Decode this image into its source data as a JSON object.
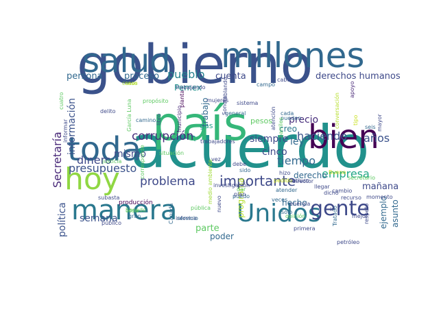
{
  "words": [
    {
      "t": "gobierno",
      "c": "#3b528b"
    },
    {
      "t": "acuerdo",
      "c": "#21918c"
    },
    {
      "t": "país",
      "c": "#35b779"
    },
    {
      "t": "millones",
      "c": "#31688e"
    },
    {
      "t": "salud",
      "c": "#31688e"
    },
    {
      "t": "toda",
      "c": "#31688e"
    },
    {
      "t": "bien",
      "c": "#440154"
    },
    {
      "t": "manera",
      "c": "#2a788e"
    },
    {
      "t": "hoy",
      "c": "#90d743"
    },
    {
      "t": "Unidos",
      "c": "#2a788e"
    },
    {
      "t": "gente",
      "c": "#3e4989"
    },
    {
      "t": "importante",
      "c": "#3e4989"
    },
    {
      "t": "problema",
      "c": "#3e4989"
    },
    {
      "t": "corrupción",
      "c": "#472d7b"
    },
    {
      "t": "presupuesto",
      "c": "#3b528b"
    },
    {
      "t": "Secretaría",
      "c": "#482878"
    },
    {
      "t": "dinero",
      "c": "#3e4989"
    },
    {
      "t": "mismo",
      "c": "#3e4989"
    },
    {
      "t": "haciendo",
      "c": "#3b528b"
    },
    {
      "t": "años",
      "c": "#3b528b"
    },
    {
      "t": "tiempo",
      "c": "#31688e"
    },
    {
      "t": "empresa",
      "c": "#21a685"
    },
    {
      "t": "pueblo",
      "c": "#26828e"
    },
    {
      "t": "derechos humanos",
      "c": "#3e4989"
    },
    {
      "t": "cuenta",
      "c": "#3e4989"
    },
    {
      "t": "persona",
      "c": "#31688e"
    },
    {
      "t": "proceso",
      "c": "#31688e"
    },
    {
      "t": "información",
      "c": "#3b528b"
    },
    {
      "t": "política",
      "c": "#3b528b"
    },
    {
      "t": "semana",
      "c": "#3b528b"
    },
    {
      "t": "parte",
      "c": "#5ec962"
    },
    {
      "t": "poder",
      "c": "#31688e"
    },
    {
      "t": "ley",
      "c": "#31688e"
    },
    {
      "t": "cinco",
      "c": "#3e4989"
    },
    {
      "t": "siempre",
      "c": "#3e4989"
    },
    {
      "t": "derecho",
      "c": "#31688e"
    },
    {
      "t": "mañana",
      "c": "#3e4989"
    },
    {
      "t": "ejemplo",
      "c": "#31688e"
    },
    {
      "t": "asunto",
      "c": "#31688e"
    },
    {
      "t": "hecho",
      "c": "#31688e"
    },
    {
      "t": "creo",
      "c": "#2a788e"
    },
    {
      "t": "precio",
      "c": "#472d7b"
    },
    {
      "t": "pesos",
      "c": "#5ec962"
    },
    {
      "t": "Pemex",
      "c": "#21918c"
    },
    {
      "t": "gas",
      "c": "#1f9e89"
    },
    {
      "t": "trabajo",
      "c": "#31688e"
    },
    {
      "t": "programa",
      "c": "#b5de2b"
    },
    {
      "t": "producción",
      "c": "#440154"
    },
    {
      "t": "gran",
      "c": "#31688e"
    },
    {
      "t": "caso",
      "c": "#c8e020"
    },
    {
      "t": "casos",
      "c": "#a0da39"
    },
    {
      "t": "trabajando",
      "c": "#3e4989"
    },
    {
      "t": "campo",
      "c": "#31688e"
    },
    {
      "t": "cabo",
      "c": "#3e4989"
    },
    {
      "t": "apoyo",
      "c": "#482878"
    },
    {
      "t": "cuatro",
      "c": "#5ec962"
    },
    {
      "t": "planta",
      "c": "#440154"
    },
    {
      "t": "propósito",
      "c": "#5ec962"
    },
    {
      "t": "hablando",
      "c": "#3e4989"
    },
    {
      "t": "mujeres",
      "c": "#3e4989"
    },
    {
      "t": "sistema",
      "c": "#3e4989"
    },
    {
      "t": "delito",
      "c": "#3e4989"
    },
    {
      "t": "camino",
      "c": "#31688e"
    },
    {
      "t": "libro",
      "c": "#3e4989"
    },
    {
      "t": "municipio",
      "c": "#482878"
    },
    {
      "t": "general",
      "c": "#31688e"
    },
    {
      "t": "Sonora",
      "c": "#3e4989"
    },
    {
      "t": "cada",
      "c": "#31688e"
    },
    {
      "t": "pueden",
      "c": "#31688e"
    },
    {
      "t": "barriles",
      "c": "#5ec962"
    },
    {
      "t": "atención",
      "c": "#3e4989"
    },
    {
      "t": "conversación",
      "c": "#b5de2b"
    },
    {
      "t": "tipo",
      "c": "#c8e020"
    },
    {
      "t": "seis",
      "c": "#31688e"
    },
    {
      "t": "mayor",
      "c": "#3e4989"
    },
    {
      "t": "informar",
      "c": "#3e4989"
    },
    {
      "t": "García Luna",
      "c": "#5ec962"
    },
    {
      "t": "trabajadores",
      "c": "#3e4989"
    },
    {
      "t": "situación",
      "c": "#5ec962"
    },
    {
      "t": "justicia",
      "c": "#5ec962"
    },
    {
      "t": "vez",
      "c": "#3e4989"
    },
    {
      "t": "debe",
      "c": "#3e4989"
    },
    {
      "t": "puedo",
      "c": "#31688e"
    },
    {
      "t": "dar",
      "c": "#5ec962"
    },
    {
      "t": "sido",
      "c": "#31688e"
    },
    {
      "t": "hizo",
      "c": "#3e4989"
    },
    {
      "t": "pedido",
      "c": "#c8e020"
    },
    {
      "t": "incluso",
      "c": "#3e4989"
    },
    {
      "t": "director",
      "c": "#3e4989"
    },
    {
      "t": "llegar",
      "c": "#3e4989"
    },
    {
      "t": "dicho",
      "c": "#3e4989"
    },
    {
      "t": "Bueno",
      "c": "#c8e020"
    },
    {
      "t": "atender",
      "c": "#31688e"
    },
    {
      "t": "veces",
      "c": "#31688e"
    },
    {
      "t": "secretario",
      "c": "#5ec962"
    },
    {
      "t": "recurso",
      "c": "#3e4989"
    },
    {
      "t": "momento",
      "c": "#3e4989"
    },
    {
      "t": "mejor",
      "c": "#3e4989"
    },
    {
      "t": "cambio",
      "c": "#3e4989"
    },
    {
      "t": "corresponde",
      "c": "#5ec962"
    },
    {
      "t": "subasta",
      "c": "#3e4989"
    },
    {
      "t": "público",
      "c": "#3e4989"
    },
    {
      "t": "Senado",
      "c": "#5ec962"
    },
    {
      "t": "cosa",
      "c": "#5ec962"
    },
    {
      "t": "pública",
      "c": "#5ec962"
    },
    {
      "t": "informe",
      "c": "#3e4989"
    },
    {
      "t": "servicio",
      "c": "#31688e"
    },
    {
      "t": "Canadá",
      "c": "#31688e"
    },
    {
      "t": "medio ambiente",
      "c": "#a0da39"
    },
    {
      "t": "nuevo",
      "c": "#3e4989"
    },
    {
      "t": "opinión",
      "c": "#5ec962"
    },
    {
      "t": "sólo",
      "c": "#31688e"
    },
    {
      "t": "energía",
      "c": "#3e4989"
    },
    {
      "t": "Tratado",
      "c": "#31688e"
    },
    {
      "t": "respeto",
      "c": "#3e4989"
    },
    {
      "t": "primera",
      "c": "#3e4989"
    },
    {
      "t": "petróleo",
      "c": "#3e4989"
    },
    {
      "t": "investigación",
      "c": "#3e4989"
    },
    {
      "t": "plan",
      "c": "#3e4989"
    },
    {
      "t": "ir",
      "c": "#3e4989"
    },
    {
      "t": "mundo",
      "c": "#c8e020"
    }
  ]
}
